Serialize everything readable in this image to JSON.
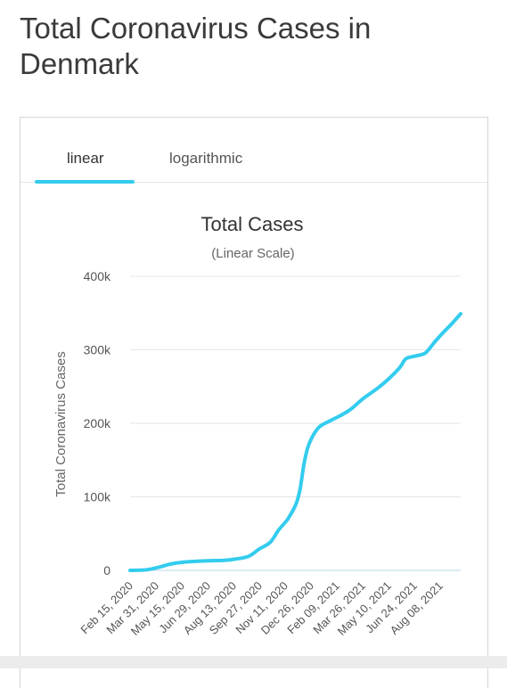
{
  "page": {
    "title": "Total Coronavirus Cases in Denmark"
  },
  "tabs": [
    {
      "label": "linear",
      "active": true
    },
    {
      "label": "logarithmic",
      "active": false
    }
  ],
  "colors": {
    "accent": "#33ccee",
    "line": "#33ccee",
    "grid": "#e6e6e6",
    "text": "#555555"
  },
  "chart_data": {
    "type": "line",
    "title": "Total Cases",
    "subtitle": "(Linear Scale)",
    "ylabel": "Total Coronavirus Cases",
    "xlabel": "",
    "ylim": [
      0,
      400000
    ],
    "yticks": [
      {
        "value": 0,
        "label": "0"
      },
      {
        "value": 100000,
        "label": "100k"
      },
      {
        "value": 200000,
        "label": "200k"
      },
      {
        "value": 300000,
        "label": "300k"
      },
      {
        "value": 400000,
        "label": "400k"
      }
    ],
    "xlim": [
      "2020-02-15",
      "2021-09-13"
    ],
    "xticks": [
      {
        "date": "2020-02-15",
        "label": "Feb 15, 2020"
      },
      {
        "date": "2020-03-31",
        "label": "Mar 31, 2020"
      },
      {
        "date": "2020-05-15",
        "label": "May 15, 2020"
      },
      {
        "date": "2020-06-29",
        "label": "Jun 29, 2020"
      },
      {
        "date": "2020-08-13",
        "label": "Aug 13, 2020"
      },
      {
        "date": "2020-09-27",
        "label": "Sep 27, 2020"
      },
      {
        "date": "2020-11-11",
        "label": "Nov 11, 2020"
      },
      {
        "date": "2020-12-26",
        "label": "Dec 26, 2020"
      },
      {
        "date": "2021-02-09",
        "label": "Feb 09, 2021"
      },
      {
        "date": "2021-03-26",
        "label": "Mar 26, 2021"
      },
      {
        "date": "2021-05-10",
        "label": "May 10, 2021"
      },
      {
        "date": "2021-06-24",
        "label": "Jun 24, 2021"
      },
      {
        "date": "2021-08-08",
        "label": "Aug 08, 2021"
      }
    ],
    "grid": true,
    "series": [
      {
        "points": [
          [
            "2020-02-15",
            0
          ],
          [
            "2020-03-15",
            800
          ],
          [
            "2020-04-06",
            4500
          ],
          [
            "2020-04-28",
            9000
          ],
          [
            "2020-05-23",
            11500
          ],
          [
            "2020-06-29",
            13000
          ],
          [
            "2020-07-27",
            13600
          ],
          [
            "2020-08-13",
            15000
          ],
          [
            "2020-09-08",
            19000
          ],
          [
            "2020-09-27",
            29000
          ],
          [
            "2020-10-16",
            38000
          ],
          [
            "2020-10-31",
            55000
          ],
          [
            "2020-11-16",
            70000
          ],
          [
            "2020-11-30",
            90000
          ],
          [
            "2020-12-07",
            110000
          ],
          [
            "2020-12-14",
            145000
          ],
          [
            "2020-12-21",
            168000
          ],
          [
            "2020-12-31",
            185000
          ],
          [
            "2021-01-11",
            196000
          ],
          [
            "2021-01-30",
            204000
          ],
          [
            "2021-02-19",
            212000
          ],
          [
            "2021-03-07",
            220000
          ],
          [
            "2021-03-26",
            233000
          ],
          [
            "2021-04-20",
            247000
          ],
          [
            "2021-05-10",
            260000
          ],
          [
            "2021-05-30",
            276000
          ],
          [
            "2021-06-10",
            288000
          ],
          [
            "2021-06-29",
            292000
          ],
          [
            "2021-07-14",
            296000
          ],
          [
            "2021-07-29",
            310000
          ],
          [
            "2021-08-13",
            323000
          ],
          [
            "2021-08-28",
            335000
          ],
          [
            "2021-09-13",
            349000
          ]
        ]
      }
    ]
  }
}
